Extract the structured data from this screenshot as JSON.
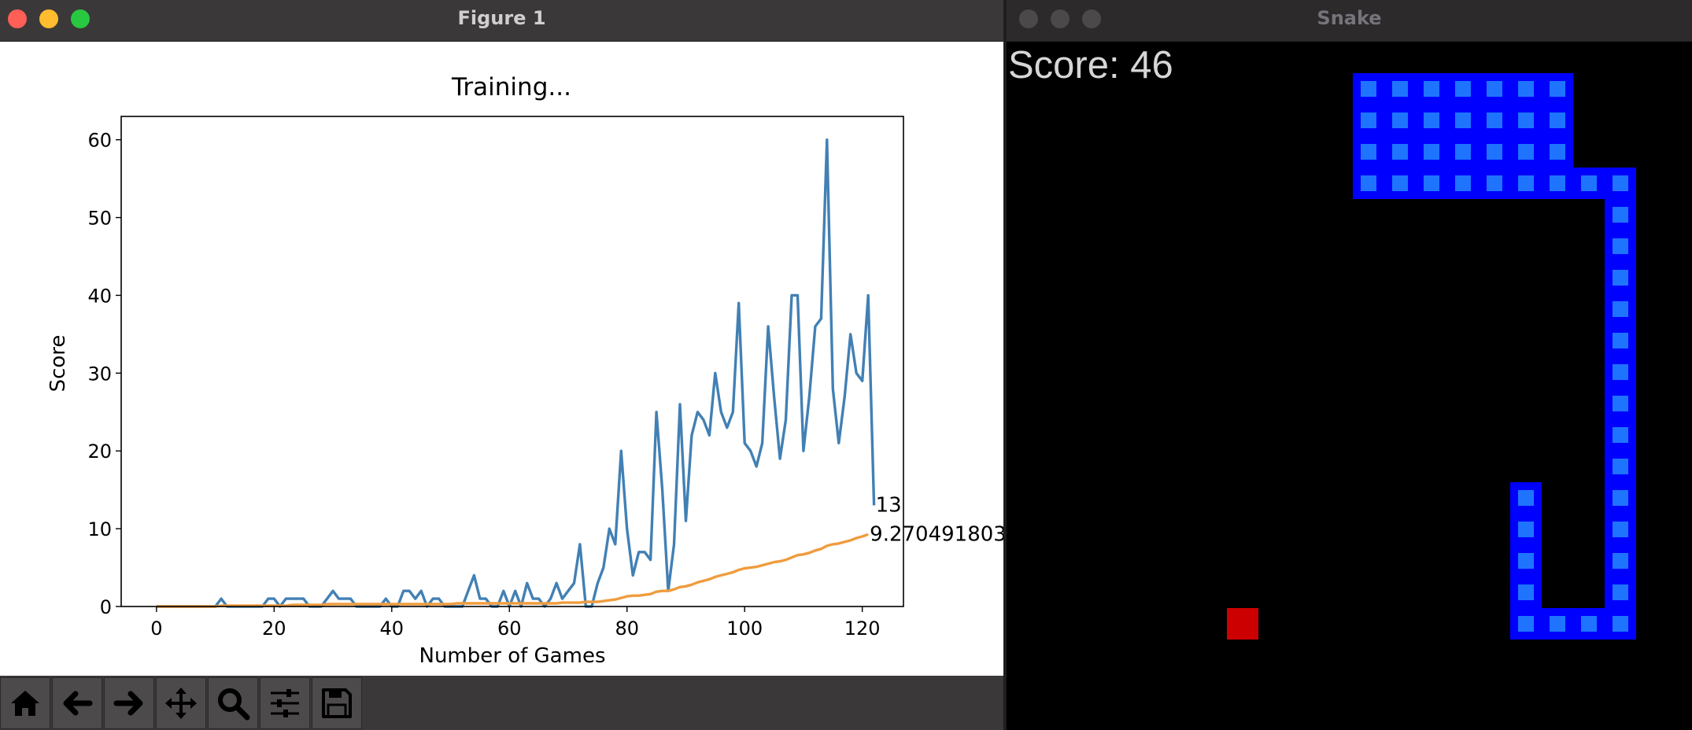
{
  "figure_window": {
    "title": "Figure 1",
    "toolbar": [
      {
        "name": "home-icon"
      },
      {
        "name": "back-arrow-icon"
      },
      {
        "name": "forward-arrow-icon"
      },
      {
        "name": "pan-move-icon"
      },
      {
        "name": "zoom-magnifier-icon"
      },
      {
        "name": "configure-subplots-icon"
      },
      {
        "name": "save-floppy-icon"
      }
    ]
  },
  "chart_data": {
    "type": "line",
    "title": "Training...",
    "xlabel": "Number of Games",
    "ylabel": "Score",
    "xlim": [
      -6,
      127
    ],
    "ylim": [
      0,
      63
    ],
    "xticks": [
      "0",
      "20",
      "40",
      "60",
      "80",
      "100",
      "120"
    ],
    "yticks": [
      "0",
      "10",
      "20",
      "30",
      "40",
      "50",
      "60"
    ],
    "grid": false,
    "series": [
      {
        "color": "#4280b4",
        "values": [
          0,
          0,
          0,
          0,
          0,
          0,
          0,
          0,
          0,
          0,
          0,
          1,
          0,
          0,
          0,
          0,
          0,
          0,
          0,
          1,
          1,
          0,
          1,
          1,
          1,
          1,
          0,
          0,
          0,
          1,
          2,
          1,
          1,
          1,
          0,
          0,
          0,
          0,
          0,
          1,
          0,
          0,
          2,
          2,
          1,
          2,
          0,
          1,
          1,
          0,
          0,
          0,
          0,
          2,
          4,
          1,
          1,
          0,
          0,
          2,
          0,
          2,
          0,
          3,
          1,
          1,
          0,
          1,
          3,
          1,
          2,
          3,
          8,
          0,
          0,
          3,
          5,
          10,
          8,
          20,
          10,
          4,
          7,
          7,
          6,
          25,
          15,
          2,
          8,
          26,
          11,
          22,
          25,
          24,
          22,
          30,
          25,
          23,
          25,
          39,
          21,
          20,
          18,
          21,
          36,
          27,
          19,
          24,
          40,
          40,
          20,
          27,
          36,
          37,
          60,
          28,
          21,
          27,
          35,
          30,
          29,
          40,
          13
        ]
      },
      {
        "color": "#ef9c3e",
        "values": [
          0,
          0,
          0,
          0,
          0,
          0,
          0,
          0,
          0,
          0,
          0,
          0.1,
          0.1,
          0.1,
          0.1,
          0.1,
          0.1,
          0.1,
          0.1,
          0.1,
          0.1,
          0.1,
          0.1,
          0.2,
          0.2,
          0.2,
          0.2,
          0.2,
          0.2,
          0.3,
          0.3,
          0.3,
          0.3,
          0.3,
          0.3,
          0.3,
          0.3,
          0.3,
          0.3,
          0.3,
          0.3,
          0.3,
          0.3,
          0.3,
          0.3,
          0.3,
          0.3,
          0.3,
          0.3,
          0.3,
          0.3,
          0.4,
          0.4,
          0.4,
          0.4,
          0.4,
          0.4,
          0.4,
          0.4,
          0.4,
          0.4,
          0.4,
          0.4,
          0.4,
          0.4,
          0.4,
          0.4,
          0.4,
          0.4,
          0.5,
          0.5,
          0.5,
          0.5,
          0.6,
          0.6,
          0.6,
          0.7,
          0.8,
          0.9,
          1.1,
          1.3,
          1.4,
          1.4,
          1.5,
          1.6,
          1.9,
          2.0,
          2.0,
          2.2,
          2.5,
          2.6,
          2.8,
          3.1,
          3.3,
          3.5,
          3.8,
          4.0,
          4.2,
          4.4,
          4.7,
          4.9,
          5.0,
          5.1,
          5.3,
          5.5,
          5.7,
          5.8,
          6.0,
          6.3,
          6.6,
          6.7,
          6.9,
          7.2,
          7.4,
          7.8,
          8.0,
          8.1,
          8.3,
          8.5,
          8.8,
          9.0,
          9.27
        ]
      }
    ],
    "annotations": [
      "13",
      "9.270491803"
    ]
  },
  "snake_window": {
    "title": "Snake",
    "score_text": "Score: 46",
    "block_size": 40,
    "snake_cells": [
      [
        11,
        1
      ],
      [
        12,
        1
      ],
      [
        13,
        1
      ],
      [
        14,
        1
      ],
      [
        15,
        1
      ],
      [
        16,
        1
      ],
      [
        17,
        1
      ],
      [
        11,
        2
      ],
      [
        12,
        2
      ],
      [
        13,
        2
      ],
      [
        14,
        2
      ],
      [
        15,
        2
      ],
      [
        16,
        2
      ],
      [
        17,
        2
      ],
      [
        11,
        3
      ],
      [
        12,
        3
      ],
      [
        13,
        3
      ],
      [
        14,
        3
      ],
      [
        15,
        3
      ],
      [
        16,
        3
      ],
      [
        17,
        3
      ],
      [
        11,
        4
      ],
      [
        12,
        4
      ],
      [
        13,
        4
      ],
      [
        14,
        4
      ],
      [
        15,
        4
      ],
      [
        16,
        4
      ],
      [
        17,
        4
      ],
      [
        18,
        4
      ],
      [
        19,
        4
      ],
      [
        19,
        5
      ],
      [
        19,
        6
      ],
      [
        19,
        7
      ],
      [
        19,
        8
      ],
      [
        19,
        9
      ],
      [
        19,
        10
      ],
      [
        19,
        11
      ],
      [
        19,
        12
      ],
      [
        19,
        13
      ],
      [
        19,
        14
      ],
      [
        19,
        15
      ],
      [
        19,
        16
      ],
      [
        19,
        17
      ],
      [
        19,
        18
      ],
      [
        16,
        14
      ],
      [
        16,
        15
      ],
      [
        16,
        16
      ],
      [
        16,
        17
      ],
      [
        16,
        18
      ],
      [
        17,
        18
      ],
      [
        18,
        18
      ]
    ],
    "food_cell": [
      7,
      18
    ],
    "colors": {
      "snake_outer": "#0000ff",
      "snake_inner": "#1e74ff",
      "food": "#cc0000",
      "score_text": "#d6d6d6"
    }
  }
}
